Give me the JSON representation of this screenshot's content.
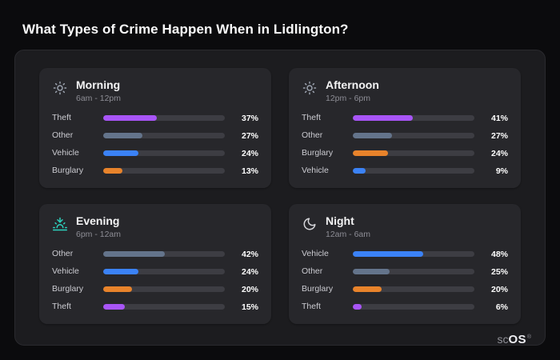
{
  "page": {
    "title": "What Types of Crime Happen When in Lidlington?"
  },
  "brand": {
    "prefix": "sc",
    "suffix": "OS",
    "mark": "®"
  },
  "palette": {
    "theft": "#a855f7",
    "other": "#64748b",
    "vehicle": "#3b82f6",
    "burglary": "#e8832b"
  },
  "chart_data": [
    {
      "type": "bar",
      "title": "Morning",
      "subtitle": "6am - 12pm",
      "icon": "sun-icon",
      "value_unit": "%",
      "categories": [
        "Theft",
        "Other",
        "Vehicle",
        "Burglary"
      ],
      "values": [
        37,
        27,
        24,
        13
      ],
      "colors": [
        "#a855f7",
        "#64748b",
        "#3b82f6",
        "#e8832b"
      ]
    },
    {
      "type": "bar",
      "title": "Afternoon",
      "subtitle": "12pm - 6pm",
      "icon": "sun-icon",
      "value_unit": "%",
      "categories": [
        "Theft",
        "Other",
        "Burglary",
        "Vehicle"
      ],
      "values": [
        41,
        27,
        24,
        9
      ],
      "colors": [
        "#a855f7",
        "#64748b",
        "#e8832b",
        "#3b82f6"
      ]
    },
    {
      "type": "bar",
      "title": "Evening",
      "subtitle": "6pm - 12am",
      "icon": "sunset-icon",
      "value_unit": "%",
      "categories": [
        "Other",
        "Vehicle",
        "Burglary",
        "Theft"
      ],
      "values": [
        42,
        24,
        20,
        15
      ],
      "colors": [
        "#64748b",
        "#3b82f6",
        "#e8832b",
        "#a855f7"
      ]
    },
    {
      "type": "bar",
      "title": "Night",
      "subtitle": "12am - 6am",
      "icon": "moon-icon",
      "value_unit": "%",
      "categories": [
        "Vehicle",
        "Other",
        "Burglary",
        "Theft"
      ],
      "values": [
        48,
        25,
        20,
        6
      ],
      "colors": [
        "#3b82f6",
        "#64748b",
        "#e8832b",
        "#a855f7"
      ]
    }
  ]
}
